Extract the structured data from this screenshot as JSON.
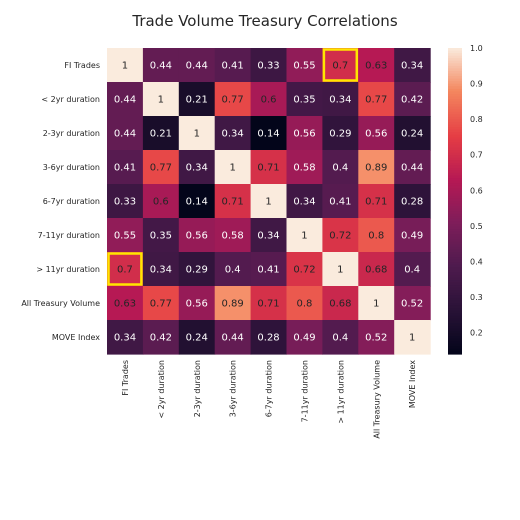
{
  "chart_data": {
    "type": "heatmap",
    "title": "Trade Volume Treasury Correlations",
    "labels": [
      "FI Trades",
      "< 2yr duration",
      "2-3yr duration",
      "3-6yr duration",
      "6-7yr duration",
      "7-11yr duration",
      "> 11yr duration",
      "All Treasury Volume",
      "MOVE Index"
    ],
    "matrix": [
      [
        1,
        0.44,
        0.44,
        0.41,
        0.33,
        0.55,
        0.7,
        0.63,
        0.34
      ],
      [
        0.44,
        1,
        0.21,
        0.77,
        0.6,
        0.35,
        0.34,
        0.77,
        0.42
      ],
      [
        0.44,
        0.21,
        1,
        0.34,
        0.14,
        0.56,
        0.29,
        0.56,
        0.24
      ],
      [
        0.41,
        0.77,
        0.34,
        1,
        0.71,
        0.58,
        0.4,
        0.89,
        0.44
      ],
      [
        0.33,
        0.6,
        0.14,
        0.71,
        1,
        0.34,
        0.41,
        0.71,
        0.28
      ],
      [
        0.55,
        0.35,
        0.56,
        0.58,
        0.34,
        1,
        0.72,
        0.8,
        0.49
      ],
      [
        0.7,
        0.34,
        0.29,
        0.4,
        0.41,
        0.72,
        1,
        0.68,
        0.4
      ],
      [
        0.63,
        0.77,
        0.56,
        0.89,
        0.71,
        0.8,
        0.68,
        1,
        0.52
      ],
      [
        0.34,
        0.42,
        0.24,
        0.44,
        0.28,
        0.49,
        0.4,
        0.52,
        1
      ]
    ],
    "cell_text": [
      [
        "1",
        "0.44",
        "0.44",
        "0.41",
        "0.33",
        "0.55",
        "0.7",
        "0.63",
        "0.34"
      ],
      [
        "0.44",
        "1",
        "0.21",
        "0.77",
        "0.6",
        "0.35",
        "0.34",
        "0.77",
        "0.42"
      ],
      [
        "0.44",
        "0.21",
        "1",
        "0.34",
        "0.14",
        "0.56",
        "0.29",
        "0.56",
        "0.24"
      ],
      [
        "0.41",
        "0.77",
        "0.34",
        "1",
        "0.71",
        "0.58",
        "0.4",
        "0.89",
        "0.44"
      ],
      [
        "0.33",
        "0.6",
        "0.14",
        "0.71",
        "1",
        "0.34",
        "0.41",
        "0.71",
        "0.28"
      ],
      [
        "0.55",
        "0.35",
        "0.56",
        "0.58",
        "0.34",
        "1",
        "0.72",
        "0.8",
        "0.49"
      ],
      [
        "0.7",
        "0.34",
        "0.29",
        "0.4",
        "0.41",
        "0.72",
        "1",
        "0.68",
        "0.4"
      ],
      [
        "0.63",
        "0.77",
        "0.56",
        "0.89",
        "0.71",
        "0.8",
        "0.68",
        "1",
        "0.52"
      ],
      [
        "0.34",
        "0.42",
        "0.24",
        "0.44",
        "0.28",
        "0.49",
        "0.4",
        "0.52",
        "1"
      ]
    ],
    "highlighted_cells": [
      [
        0,
        6
      ],
      [
        6,
        0
      ]
    ],
    "highlight_color": "#ffe600",
    "colormap": "rocket",
    "colorbar": {
      "range": [
        0.14,
        1.0
      ],
      "ticks": [
        0.2,
        0.3,
        0.4,
        0.5,
        0.6,
        0.7,
        0.8,
        0.9,
        1.0
      ],
      "tick_labels": [
        "0.2",
        "0.3",
        "0.4",
        "0.5",
        "0.6",
        "0.7",
        "0.8",
        "0.9",
        "1.0"
      ]
    }
  }
}
